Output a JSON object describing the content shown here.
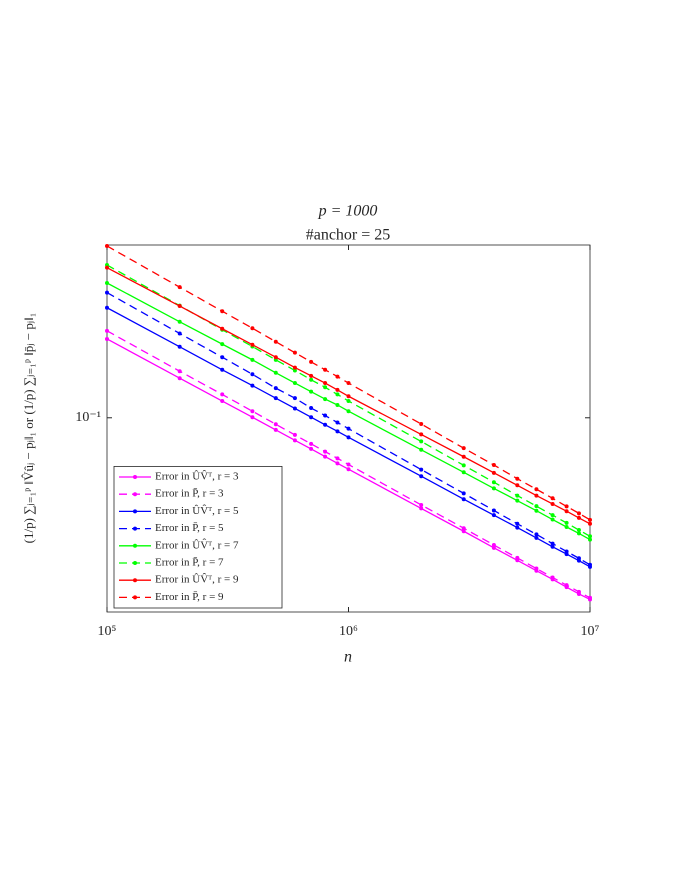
{
  "chart_data": {
    "type": "line",
    "title": [
      "p = 1000",
      "#anchor = 25"
    ],
    "xlabel": "n",
    "ylabel": "(1/p) ∑ⱼ₌₁ᵖ ‖V̂ûⱼ − pⱼ‖₁ or (1/p) ∑ⱼ₌₁ᵖ ‖p̄ⱼ − pⱼ‖₁",
    "x": [
      100000,
      200000,
      300000,
      400000,
      500000,
      600000,
      700000,
      800000,
      900000,
      1000000,
      2000000,
      3000000,
      4000000,
      5000000,
      6000000,
      7000000,
      8000000,
      9000000,
      10000000
    ],
    "xscale": "log",
    "yscale": "log",
    "xlim": [
      100000,
      10000000
    ],
    "ylim": [
      0.0179,
      0.462
    ],
    "xticks": [
      {
        "value": 100000,
        "label": "10⁵"
      },
      {
        "value": 1000000,
        "label": "10⁶"
      },
      {
        "value": 10000000,
        "label": "10⁷"
      }
    ],
    "yticks": [
      {
        "value": 0.1,
        "label": "10⁻¹"
      }
    ],
    "legend": "southwest",
    "series": [
      {
        "name": "Error in ÛV̂ᵀ, r = 3",
        "color": "#ff00ff",
        "dash": "solid",
        "values": [
          0.201,
          0.142,
          0.116,
          0.1005,
          0.0898,
          0.0819,
          0.0759,
          0.0709,
          0.0668,
          0.0634,
          0.0448,
          0.0366,
          0.0316,
          0.0283,
          0.0258,
          0.0239,
          0.0223,
          0.021,
          0.02
        ]
      },
      {
        "name": "Error in P̄, r = 3",
        "color": "#ff00ff",
        "dash": "dashed",
        "values": [
          0.216,
          0.151,
          0.123,
          0.106,
          0.0944,
          0.0859,
          0.0794,
          0.0741,
          0.0698,
          0.0661,
          0.0462,
          0.0376,
          0.0324,
          0.0289,
          0.0263,
          0.0243,
          0.0227,
          0.0214,
          0.0203
        ]
      },
      {
        "name": "Error in ÛV̂ᵀ, r = 5",
        "color": "#0000ff",
        "dash": "solid",
        "values": [
          0.265,
          0.1875,
          0.153,
          0.133,
          0.119,
          0.1086,
          0.1005,
          0.094,
          0.0887,
          0.0841,
          0.0596,
          0.0486,
          0.0422,
          0.0378,
          0.0345,
          0.0319,
          0.0299,
          0.0282,
          0.0267
        ]
      },
      {
        "name": "Error in P̄, r = 5",
        "color": "#0000ff",
        "dash": "dashed",
        "values": [
          0.303,
          0.211,
          0.171,
          0.147,
          0.13,
          0.119,
          0.109,
          0.102,
          0.0959,
          0.0908,
          0.0632,
          0.0512,
          0.044,
          0.0391,
          0.0356,
          0.0328,
          0.0306,
          0.0288,
          0.0272
        ]
      },
      {
        "name": "Error in ÛV̂ᵀ, r = 7",
        "color": "#00ff00",
        "dash": "solid",
        "values": [
          0.33,
          0.234,
          0.192,
          0.167,
          0.149,
          0.136,
          0.126,
          0.118,
          0.112,
          0.106,
          0.0753,
          0.0617,
          0.0535,
          0.048,
          0.0439,
          0.0406,
          0.038,
          0.0359,
          0.034
        ]
      },
      {
        "name": "Error in P̄, r = 7",
        "color": "#00ff00",
        "dash": "dashed",
        "values": [
          0.387,
          0.27,
          0.218,
          0.188,
          0.167,
          0.152,
          0.14,
          0.131,
          0.123,
          0.116,
          0.0811,
          0.0656,
          0.0565,
          0.0502,
          0.0457,
          0.0422,
          0.0394,
          0.037,
          0.035
        ]
      },
      {
        "name": "Error in ÛV̂ᵀ, r = 9",
        "color": "#ff0000",
        "dash": "solid",
        "values": [
          0.378,
          0.269,
          0.22,
          0.191,
          0.171,
          0.156,
          0.145,
          0.136,
          0.128,
          0.121,
          0.0863,
          0.0708,
          0.0614,
          0.055,
          0.0502,
          0.0466,
          0.0437,
          0.0412,
          0.0391
        ]
      },
      {
        "name": "Error in P̄, r = 9",
        "color": "#ff0000",
        "dash": "dashed",
        "values": [
          0.458,
          0.318,
          0.257,
          0.221,
          0.196,
          0.178,
          0.164,
          0.153,
          0.144,
          0.136,
          0.0946,
          0.0764,
          0.0658,
          0.0583,
          0.0531,
          0.049,
          0.0456,
          0.0429,
          0.0405
        ]
      }
    ]
  }
}
